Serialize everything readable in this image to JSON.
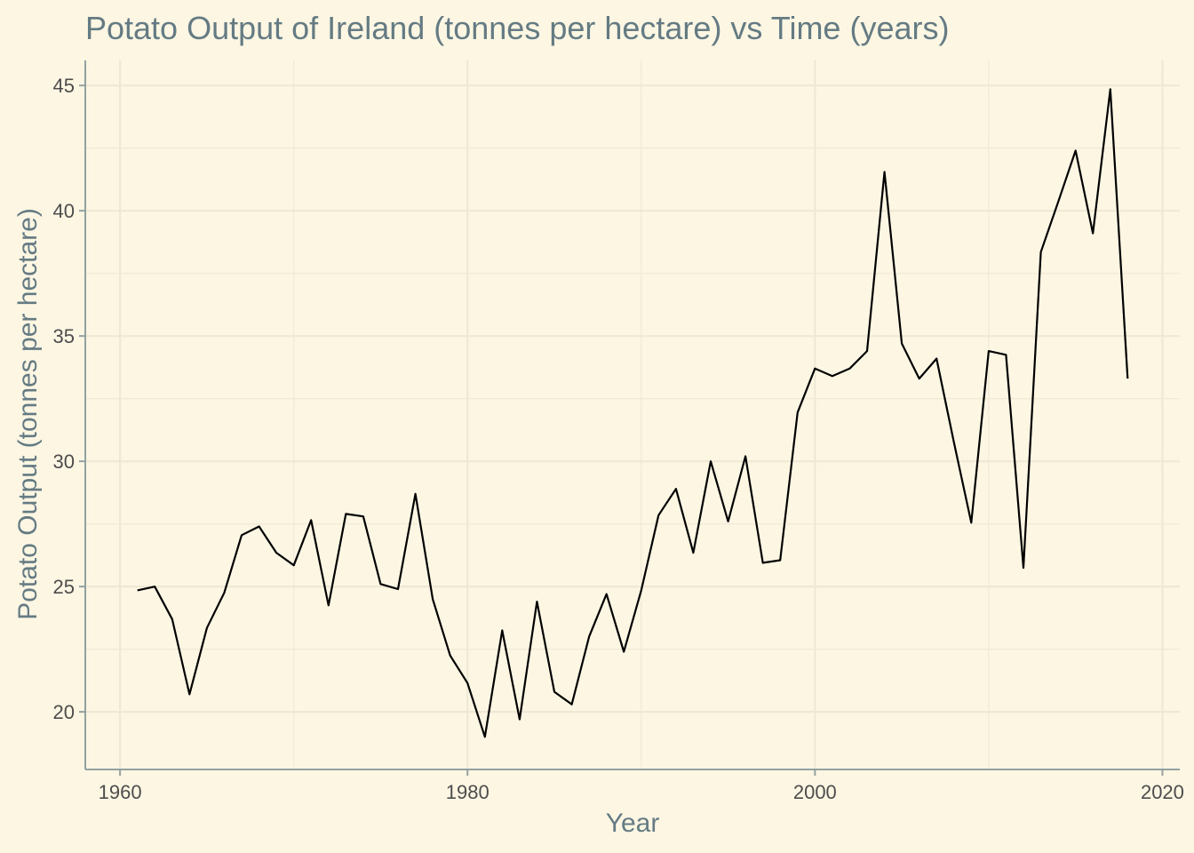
{
  "chart_data": {
    "type": "line",
    "title": "Potato Output of Ireland (tonnes per hectare) vs Time (years)",
    "xlabel": "Year",
    "ylabel": "Potato Output (tonnes per hectare)",
    "xlim": [
      1958,
      2021
    ],
    "ylim": [
      17.7,
      46
    ],
    "x_ticks": [
      1960,
      1980,
      2000,
      2020
    ],
    "y_ticks": [
      20,
      25,
      30,
      35,
      40,
      45
    ],
    "grid": true,
    "series": [
      {
        "x": [
          1961,
          1962,
          1963,
          1964,
          1965,
          1966,
          1967,
          1968,
          1969,
          1970,
          1971,
          1972,
          1973,
          1974,
          1975,
          1976,
          1977,
          1978,
          1979,
          1980,
          1981,
          1982,
          1983,
          1984,
          1985,
          1986,
          1987,
          1988,
          1989,
          1990,
          1991,
          1992,
          1993,
          1994,
          1995,
          1996,
          1997,
          1998,
          1999,
          2000,
          2001,
          2002,
          2003,
          2004,
          2005,
          2006,
          2007,
          2008,
          2009,
          2010,
          2011,
          2012,
          2013,
          2014,
          2015,
          2016,
          2017,
          2018
        ],
        "values": [
          24.85,
          25.0,
          23.7,
          20.7,
          23.35,
          24.75,
          27.05,
          27.4,
          26.35,
          25.85,
          27.65,
          24.25,
          27.9,
          27.8,
          25.1,
          24.9,
          28.7,
          24.5,
          22.25,
          21.15,
          19.0,
          23.25,
          19.7,
          24.4,
          20.8,
          20.3,
          23.0,
          24.7,
          22.4,
          24.85,
          27.85,
          28.9,
          26.35,
          30.0,
          27.6,
          30.2,
          25.95,
          26.05,
          31.95,
          33.7,
          33.4,
          33.7,
          34.4,
          41.55,
          34.7,
          33.3,
          34.1,
          30.75,
          27.55,
          34.4,
          34.25,
          25.75,
          38.35,
          40.35,
          42.4,
          39.1,
          44.85,
          33.3
        ]
      }
    ]
  }
}
